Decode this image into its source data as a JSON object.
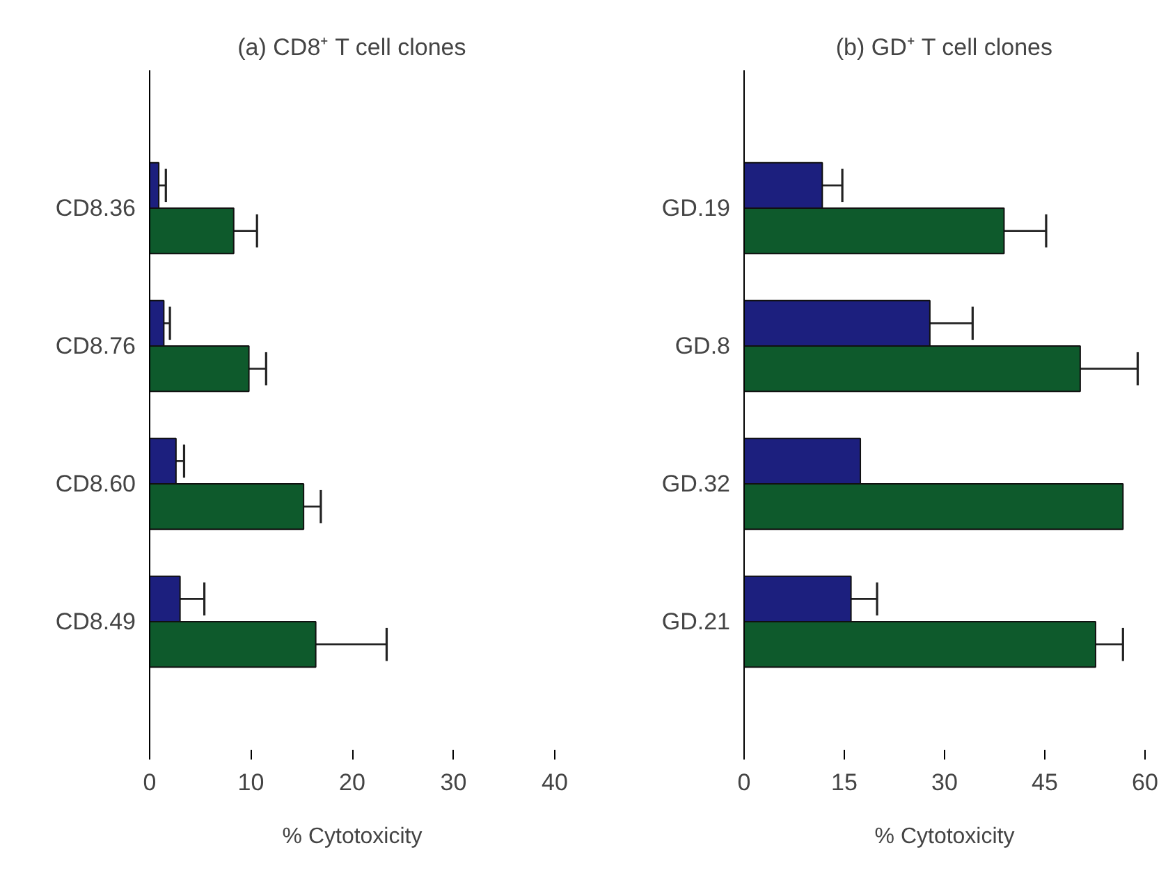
{
  "chart_data": [
    {
      "type": "bar",
      "orientation": "horizontal",
      "title": "(a) CD8⁺ T cell clones",
      "xlabel": "% Cytotoxicity",
      "categories": [
        "CD8.36",
        "CD8.76",
        "CD8.60",
        "CD8.49"
      ],
      "series": [
        {
          "color": "#1c1f7e",
          "values": [
            0.9,
            1.4,
            2.6,
            3.0
          ],
          "errors": [
            [
              0.9,
              1.6
            ],
            [
              1.4,
              2.0
            ],
            [
              2.6,
              3.4
            ],
            [
              3.0,
              5.4
            ]
          ]
        },
        {
          "color": "#0e5a2c",
          "values": [
            8.3,
            9.8,
            15.2,
            16.4
          ],
          "errors": [
            [
              8.3,
              10.6
            ],
            [
              9.8,
              11.5
            ],
            [
              15.2,
              16.9
            ],
            [
              16.4,
              23.4
            ]
          ]
        }
      ],
      "xlim": [
        0,
        40
      ],
      "xticks": [
        0,
        10,
        20,
        30,
        40
      ]
    },
    {
      "type": "bar",
      "orientation": "horizontal",
      "title": "(b) GD⁺ T cell clones",
      "xlabel": "% Cytotoxicity",
      "categories": [
        "GD.19",
        "GD.8",
        "GD.32",
        "GD.21"
      ],
      "series": [
        {
          "color": "#1c1f7e",
          "values": [
            11.7,
            27.8,
            17.4,
            16.0
          ],
          "errors": [
            [
              11.7,
              14.7
            ],
            [
              27.8,
              34.2
            ],
            null,
            [
              16.0,
              19.9
            ]
          ]
        },
        {
          "color": "#0e5a2c",
          "values": [
            38.9,
            50.3,
            56.7,
            52.6
          ],
          "errors": [
            [
              38.9,
              45.2
            ],
            [
              50.3,
              58.9
            ],
            null,
            [
              52.6,
              56.7
            ]
          ]
        }
      ],
      "xlim": [
        0,
        60
      ],
      "xticks": [
        0,
        15,
        30,
        45,
        60
      ]
    }
  ]
}
